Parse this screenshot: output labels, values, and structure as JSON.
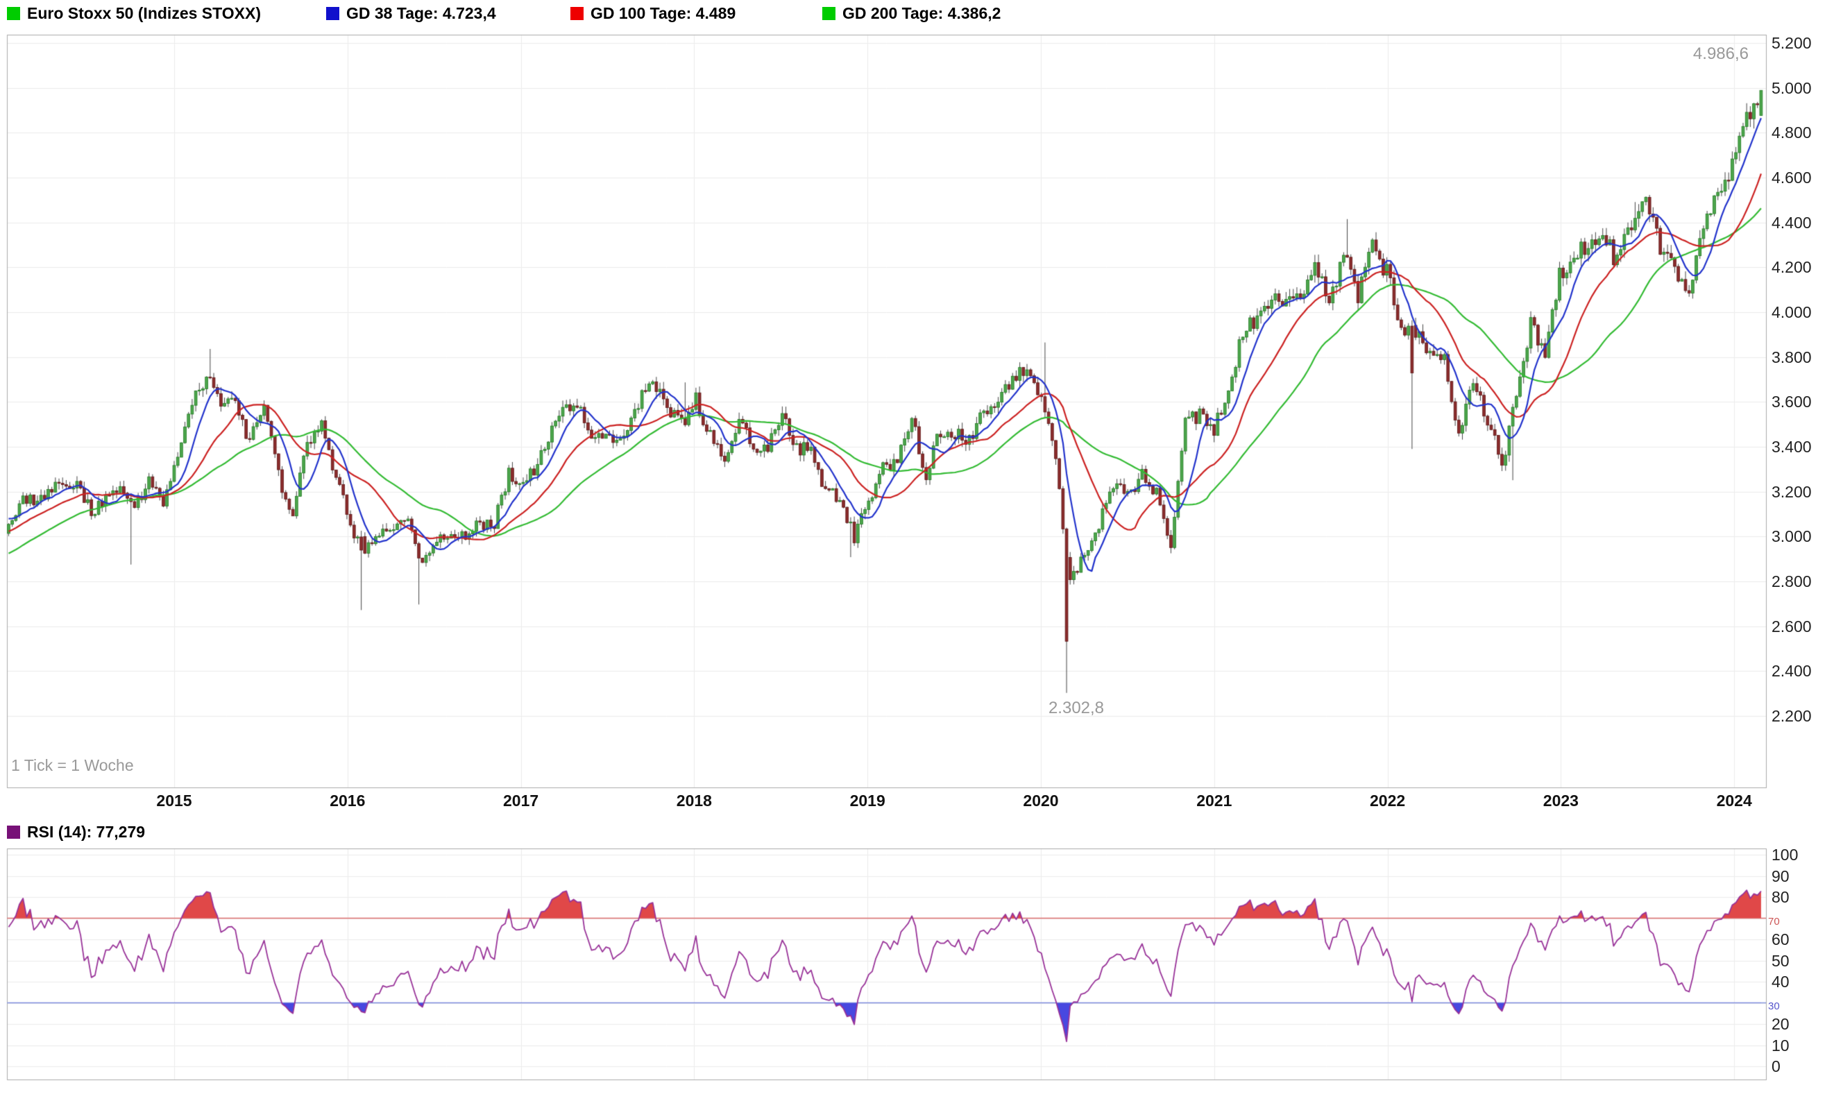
{
  "legend": {
    "series": [
      {
        "label": "Euro Stoxx 50 (Indizes STOXX)",
        "color": "#00cc00"
      },
      {
        "label": "GD 38 Tage: 4.723,4",
        "color": "#1111cc"
      },
      {
        "label": "GD 100 Tage: 4.489",
        "color": "#ee0000"
      },
      {
        "label": "GD 200 Tage: 4.386,2",
        "color": "#00cc00"
      }
    ]
  },
  "rsi_legend": {
    "label": "RSI (14): 77,279",
    "color": "#771177"
  },
  "footnote": "1 Tick = 1 Woche",
  "annotations": {
    "high": "4.986,6",
    "low": "2.302,8"
  },
  "axes": {
    "price_ticks": [
      "5.200",
      "5.000",
      "4.800",
      "4.600",
      "4.400",
      "4.200",
      "4.000",
      "3.800",
      "3.600",
      "3.400",
      "3.200",
      "3.000",
      "2.800",
      "2.600",
      "2.400",
      "2.200"
    ],
    "years": [
      "2015",
      "2016",
      "2017",
      "2018",
      "2019",
      "2020",
      "2021",
      "2022",
      "2023",
      "2024"
    ],
    "rsi_ticks": [
      "100",
      "90",
      "80",
      "60",
      "50",
      "40",
      "20",
      "10",
      "0"
    ],
    "rsi_overbought": "70",
    "rsi_oversold": "30"
  },
  "colors": {
    "up_fill": "#4da64d",
    "up_stroke": "#1e7a1e",
    "down_fill": "#8b2c2c",
    "down_stroke": "#5e1515",
    "wick": "#444444",
    "grid": "#ececec",
    "border": "#aaaaaa",
    "rsi_line": "#993399",
    "overbought_line": "#dd7777",
    "oversold_line": "#8899dd",
    "overbought_fill": "#e04848",
    "oversold_fill": "#4848e0",
    "annotation": "#999999"
  },
  "chart_data": {
    "type": "candlestick",
    "title": "Euro Stoxx 50 (Indizes STOXX)",
    "interval": "weekly",
    "tick_note": "1 Tick = 1 Woche",
    "x_range_years": [
      2014.04,
      2024.16
    ],
    "ylim": [
      2200,
      5200
    ],
    "y_tick_step": 200,
    "grid": true,
    "legend_position": "top",
    "monthly_closes": {
      "start": "2014-01",
      "values": [
        3014,
        3149,
        3162,
        3198,
        3245,
        3228,
        3116,
        3173,
        3226,
        3113,
        3251,
        3146,
        3351,
        3599,
        3697,
        3615,
        3570,
        3424,
        3601,
        3269,
        3101,
        3418,
        3506,
        3268,
        3045,
        2946,
        3005,
        3028,
        3063,
        2865,
        2991,
        3023,
        3002,
        3055,
        3052,
        3291,
        3231,
        3320,
        3501,
        3560,
        3554,
        3442,
        3450,
        3421,
        3595,
        3674,
        3570,
        3504,
        3609,
        3439,
        3362,
        3537,
        3407,
        3396,
        3525,
        3393,
        3399,
        3198,
        3173,
        3001,
        3160,
        3298,
        3352,
        3515,
        3280,
        3474,
        3467,
        3427,
        3569,
        3604,
        3704,
        3745,
        3641,
        3329,
        2787,
        2928,
        3050,
        3234,
        3174,
        3273,
        3193,
        2958,
        3493,
        3553,
        3481,
        3636,
        3919,
        3974,
        4039,
        4064,
        4089,
        4196,
        4048,
        4251,
        4063,
        4298,
        4175,
        3924,
        3903,
        3803,
        3789,
        3455,
        3708,
        3517,
        3318,
        3618,
        3965,
        3794,
        4163,
        4238,
        4315,
        4359,
        4218,
        4399,
        4471,
        4297,
        4175,
        4061,
        4382,
        4522,
        4638,
        4878,
        4960
      ]
    },
    "weekly_extremes": [
      {
        "date": "2014-10",
        "type": "low",
        "value": 2875
      },
      {
        "date": "2015-04",
        "type": "high",
        "value": 3836
      },
      {
        "date": "2016-02",
        "type": "low",
        "value": 2672
      },
      {
        "date": "2016-06",
        "type": "low",
        "value": 2697
      },
      {
        "date": "2018-01",
        "type": "high",
        "value": 3687
      },
      {
        "date": "2018-12",
        "type": "low",
        "value": 2908
      },
      {
        "date": "2020-02",
        "type": "high",
        "value": 3865
      },
      {
        "date": "2020-03",
        "type": "low",
        "value": 2302.8
      },
      {
        "date": "2021-11",
        "type": "high",
        "value": 4415
      },
      {
        "date": "2022-03",
        "type": "low",
        "value": 3390
      },
      {
        "date": "2022-10",
        "type": "low",
        "value": 3251
      },
      {
        "date": "2023-07",
        "type": "high",
        "value": 4491
      },
      {
        "date": "2024-03",
        "type": "high",
        "value": 4986.6
      }
    ],
    "labeled_extremes": {
      "low": {
        "date": "2020-03",
        "value": 2302.8,
        "label": "2.302,8"
      },
      "high": {
        "date": "2024-03",
        "value": 4986.6,
        "label": "4.986,6"
      }
    },
    "moving_averages": [
      {
        "name": "GD 38 Tage",
        "days": 38,
        "last": 4723.4,
        "color": "#2233cc"
      },
      {
        "name": "GD 100 Tage",
        "days": 100,
        "last": 4489,
        "color": "#cc2222"
      },
      {
        "name": "GD 200 Tage",
        "days": 200,
        "last": 4386.2,
        "color": "#33bb33"
      }
    ],
    "rsi": {
      "period": 14,
      "last": 77.279,
      "overbought": 70,
      "oversold": 30,
      "ylim": [
        0,
        100
      ]
    }
  }
}
